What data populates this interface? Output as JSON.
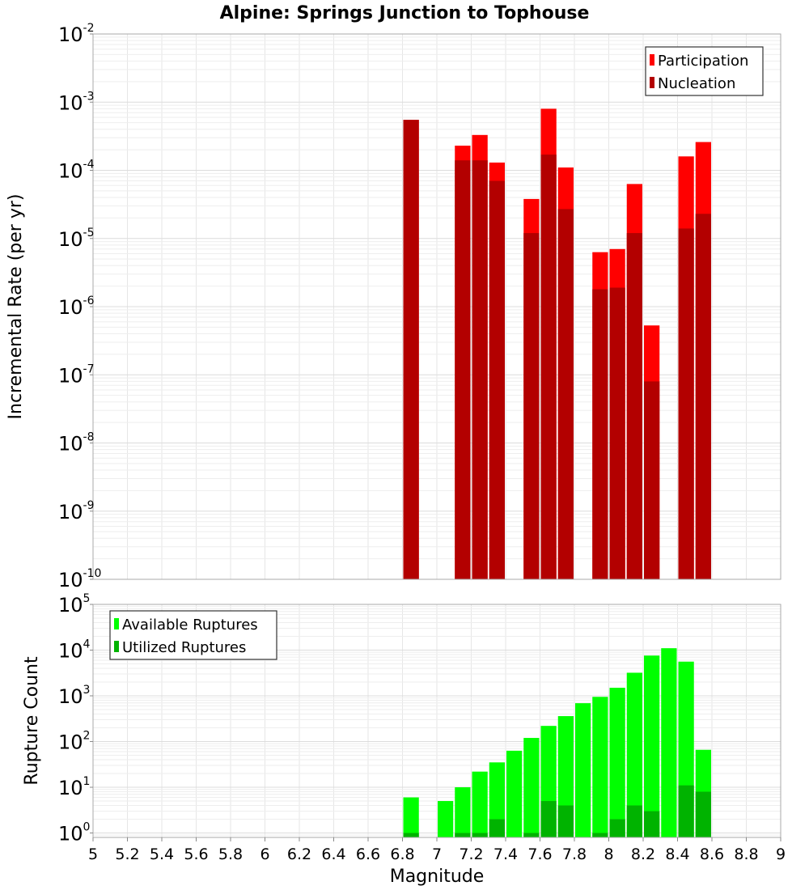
{
  "chart_data": [
    {
      "type": "bar",
      "title": "Alpine: Springs Junction to Tophouse",
      "ylabel": "Incremental Rate (per yr)",
      "xlabel": "",
      "yscale": "log",
      "xlim": [
        5,
        9
      ],
      "ylim": [
        1e-10,
        0.01
      ],
      "bin_width": 0.1,
      "grid": true,
      "legend_position": "top-right",
      "x": [
        6.85,
        7.15,
        7.25,
        7.35,
        7.55,
        7.65,
        7.75,
        7.95,
        8.05,
        8.15,
        8.25,
        8.45,
        8.55
      ],
      "series": [
        {
          "name": "Participation",
          "color": "#ff0000",
          "values": [
            0.00055,
            0.00023,
            0.00033,
            0.00013,
            3.8e-05,
            0.0008,
            0.00011,
            6.3e-06,
            7e-06,
            6.3e-05,
            5.3e-07,
            0.00016,
            0.00026
          ]
        },
        {
          "name": "Nucleation",
          "color": "#b30000",
          "values": [
            0.00055,
            0.00014,
            0.00014,
            7e-05,
            1.2e-05,
            0.00017,
            2.7e-05,
            1.8e-06,
            1.9e-06,
            1.2e-05,
            8e-08,
            1.4e-05,
            2.3e-05
          ]
        }
      ],
      "y_ticks": [
        {
          "base": "10",
          "exp": "-10"
        },
        {
          "base": "10",
          "exp": "-9"
        },
        {
          "base": "10",
          "exp": "-8"
        },
        {
          "base": "10",
          "exp": "-7"
        },
        {
          "base": "10",
          "exp": "-6"
        },
        {
          "base": "10",
          "exp": "-5"
        },
        {
          "base": "10",
          "exp": "-4"
        },
        {
          "base": "10",
          "exp": "-3"
        },
        {
          "base": "10",
          "exp": "-2"
        }
      ]
    },
    {
      "type": "bar",
      "title": "",
      "ylabel": "Rupture Count",
      "xlabel": "Magnitude",
      "yscale": "log",
      "xlim": [
        5,
        9
      ],
      "ylim": [
        0.8,
        100000
      ],
      "bin_width": 0.1,
      "grid": true,
      "legend_position": "top-left",
      "series": [
        {
          "name": "Available Ruptures",
          "color": "#00ff00",
          "x": [
            6.85,
            7.05,
            7.15,
            7.25,
            7.35,
            7.45,
            7.55,
            7.65,
            7.75,
            7.85,
            7.95,
            8.05,
            8.15,
            8.25,
            8.35,
            8.45,
            8.55
          ],
          "values": [
            6,
            5,
            10,
            22,
            35,
            63,
            120,
            220,
            360,
            690,
            950,
            1500,
            3200,
            7600,
            11000,
            5600,
            66
          ]
        },
        {
          "name": "Utilized Ruptures",
          "color": "#00b300",
          "x": [
            6.85,
            7.15,
            7.25,
            7.35,
            7.55,
            7.65,
            7.75,
            7.95,
            8.05,
            8.15,
            8.25,
            8.45,
            8.55
          ],
          "values": [
            1,
            1,
            1,
            2,
            1,
            5,
            4,
            1,
            2,
            4,
            3,
            11,
            8
          ]
        }
      ],
      "y_ticks": [
        {
          "base": "10",
          "exp": "0"
        },
        {
          "base": "10",
          "exp": "1"
        },
        {
          "base": "10",
          "exp": "2"
        },
        {
          "base": "10",
          "exp": "3"
        },
        {
          "base": "10",
          "exp": "4"
        },
        {
          "base": "10",
          "exp": "5"
        }
      ],
      "x_ticks": [
        "5",
        "5.2",
        "5.4",
        "5.6",
        "5.8",
        "6",
        "6.2",
        "6.4",
        "6.6",
        "6.8",
        "7",
        "7.2",
        "7.4",
        "7.6",
        "7.8",
        "8",
        "8.2",
        "8.4",
        "8.6",
        "8.8",
        "9"
      ]
    }
  ]
}
